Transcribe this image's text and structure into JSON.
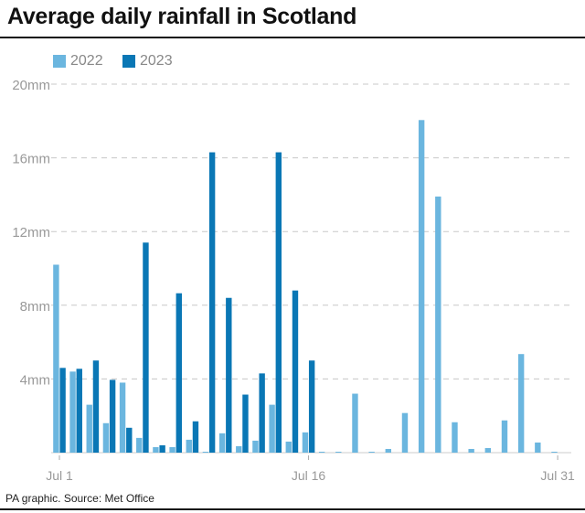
{
  "chart_data": {
    "type": "bar",
    "title": "Average daily rainfall in Scotland",
    "source": "PA graphic. Source: Met Office",
    "categories": [
      "Jul 1",
      "Jul 2",
      "Jul 3",
      "Jul 4",
      "Jul 5",
      "Jul 6",
      "Jul 7",
      "Jul 8",
      "Jul 9",
      "Jul 10",
      "Jul 11",
      "Jul 12",
      "Jul 13",
      "Jul 14",
      "Jul 15",
      "Jul 16",
      "Jul 17",
      "Jul 18",
      "Jul 19",
      "Jul 20",
      "Jul 21",
      "Jul 22",
      "Jul 23",
      "Jul 24",
      "Jul 25",
      "Jul 26",
      "Jul 27",
      "Jul 28",
      "Jul 29",
      "Jul 30",
      "Jul 31"
    ],
    "x_tick_labels": [
      "Jul 1",
      "Jul 16",
      "Jul 31"
    ],
    "y_tick_labels": [
      "20mm",
      "16mm",
      "12mm",
      "8mm",
      "4mm"
    ],
    "ylim": [
      0,
      20
    ],
    "unit": "mm",
    "grid": true,
    "legend_position": "top-left",
    "series": [
      {
        "name": "2022",
        "color": "#6bb6df",
        "values": [
          10.2,
          4.4,
          2.6,
          1.6,
          3.8,
          0.8,
          0.3,
          0.3,
          0.7,
          0.05,
          1.05,
          0.35,
          0.65,
          2.6,
          0.6,
          1.1,
          0.05,
          0.05,
          3.2,
          0.05,
          0.2,
          2.15,
          18.05,
          13.9,
          1.65,
          0.2,
          0.25,
          1.75,
          5.35,
          0.55,
          0.05
        ]
      },
      {
        "name": "2023",
        "color": "#0a77b5",
        "values": [
          4.6,
          4.55,
          5.0,
          3.95,
          1.35,
          11.4,
          0.4,
          8.65,
          1.7,
          16.3,
          8.4,
          3.15,
          4.3,
          16.3,
          8.8,
          5.0,
          null,
          null,
          null,
          null,
          null,
          null,
          null,
          null,
          null,
          null,
          null,
          null,
          null,
          null,
          null
        ]
      }
    ]
  }
}
